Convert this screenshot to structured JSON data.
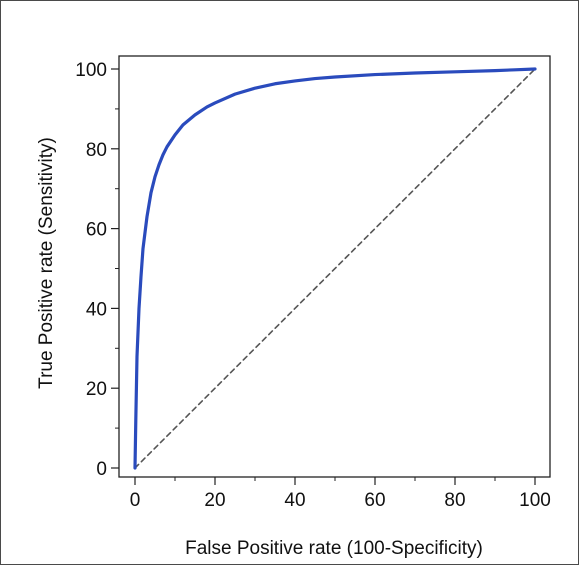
{
  "chart_data": {
    "type": "line",
    "title": "",
    "xlabel": "False Positive rate (100-Specificity)",
    "ylabel": "True Positive rate (Sensitivity)",
    "xlim": [
      0,
      100
    ],
    "ylim": [
      0,
      100
    ],
    "x_ticks": [
      0,
      20,
      40,
      60,
      80,
      100
    ],
    "y_ticks": [
      0,
      20,
      40,
      60,
      80,
      100
    ],
    "grid": false,
    "legend": "none",
    "series": [
      {
        "color": "#2a4bbd",
        "style": "solid",
        "x": [
          0,
          0.2,
          0.5,
          1,
          1.5,
          2,
          3,
          4,
          5,
          6,
          7,
          8,
          10,
          12,
          15,
          18,
          20,
          25,
          30,
          35,
          40,
          45,
          50,
          60,
          70,
          80,
          90,
          95,
          100
        ],
        "y": [
          0,
          12,
          28,
          40,
          48,
          55,
          63,
          69,
          73,
          76,
          78.5,
          80.5,
          83.5,
          86,
          88.5,
          90.5,
          91.5,
          93.7,
          95.2,
          96.3,
          97,
          97.6,
          98,
          98.6,
          99,
          99.3,
          99.6,
          99.8,
          100
        ]
      },
      {
        "color": "#555555",
        "style": "dashed",
        "x": [
          0,
          100
        ],
        "y": [
          0,
          100
        ]
      }
    ]
  }
}
